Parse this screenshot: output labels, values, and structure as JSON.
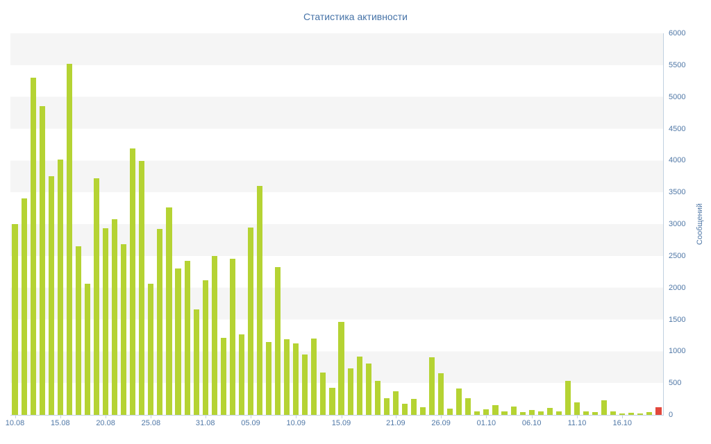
{
  "chart": {
    "title": "Статистика активности",
    "y_axis_title": "Сообщений"
  },
  "chart_data": {
    "type": "bar",
    "title": "Статистика активности",
    "xlabel": "",
    "ylabel": "Сообщений",
    "ylim": [
      0,
      6000
    ],
    "y_ticks": [
      0,
      500,
      1000,
      1500,
      2000,
      2500,
      3000,
      3500,
      4000,
      4500,
      5000,
      5500,
      6000
    ],
    "grid": "alternating-bands",
    "band_color": "#f5f5f5",
    "legend": "off",
    "bar_color": "#b5d333",
    "highlight_index": 71,
    "highlight_color": "#e2483d",
    "categories": [
      "10.08",
      "11.08",
      "12.08",
      "13.08",
      "14.08",
      "15.08",
      "16.08",
      "17.08",
      "18.08",
      "19.08",
      "20.08",
      "21.08",
      "22.08",
      "23.08",
      "24.08",
      "25.08",
      "26.08",
      "27.08",
      "28.08",
      "29.08",
      "30.08",
      "31.08",
      "01.09",
      "02.09",
      "03.09",
      "04.09",
      "05.09",
      "06.09",
      "07.09",
      "08.09",
      "09.09",
      "10.09",
      "11.09",
      "12.09",
      "13.09",
      "14.09",
      "15.09",
      "16.09",
      "17.09",
      "18.09",
      "19.09",
      "20.09",
      "21.09",
      "22.09",
      "23.09",
      "24.09",
      "25.09",
      "26.09",
      "27.09",
      "28.09",
      "29.09",
      "30.09",
      "01.10",
      "02.10",
      "03.10",
      "04.10",
      "05.10",
      "06.10",
      "07.10",
      "08.10",
      "09.10",
      "10.10",
      "11.10",
      "12.10",
      "13.10",
      "14.10",
      "15.10",
      "16.10",
      "17.10",
      "18.10",
      "19.10",
      "20.10"
    ],
    "values": [
      3000,
      3400,
      5300,
      4860,
      3750,
      4020,
      5520,
      2650,
      2060,
      3720,
      2930,
      3080,
      2680,
      4190,
      3990,
      2060,
      2920,
      3260,
      2300,
      2420,
      1660,
      2120,
      2500,
      1210,
      2450,
      1270,
      2950,
      3600,
      1150,
      2320,
      1190,
      1120,
      950,
      1200,
      670,
      430,
      1460,
      730,
      920,
      810,
      540,
      260,
      370,
      180,
      250,
      120,
      910,
      660,
      100,
      420,
      260,
      50,
      90,
      150,
      60,
      130,
      40,
      80,
      60,
      110,
      60,
      540,
      200,
      60,
      40,
      230,
      50,
      20,
      30,
      20,
      40,
      120
    ],
    "x_ticks": [
      {
        "index": 0,
        "label": "10.08"
      },
      {
        "index": 5,
        "label": "15.08"
      },
      {
        "index": 10,
        "label": "20.08"
      },
      {
        "index": 15,
        "label": "25.08"
      },
      {
        "index": 21,
        "label": "31.08"
      },
      {
        "index": 26,
        "label": "05.09"
      },
      {
        "index": 31,
        "label": "10.09"
      },
      {
        "index": 36,
        "label": "15.09"
      },
      {
        "index": 42,
        "label": "21.09"
      },
      {
        "index": 47,
        "label": "26.09"
      },
      {
        "index": 52,
        "label": "01.10"
      },
      {
        "index": 57,
        "label": "06.10"
      },
      {
        "index": 62,
        "label": "11.10"
      },
      {
        "index": 67,
        "label": "16.10"
      }
    ]
  }
}
